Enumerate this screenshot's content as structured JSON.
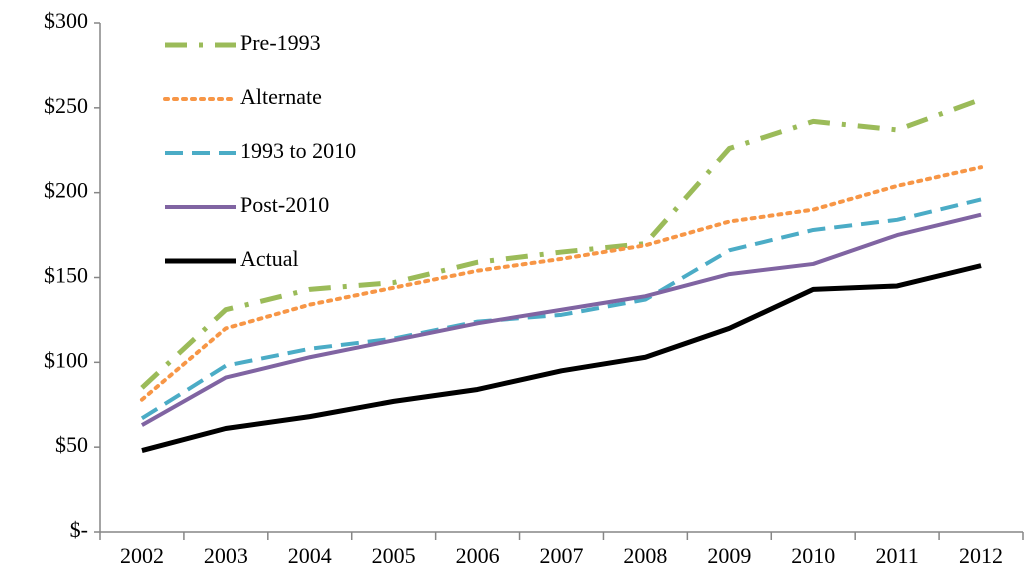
{
  "chart_data": {
    "type": "line",
    "categories": [
      "2002",
      "2003",
      "2004",
      "2005",
      "2006",
      "2007",
      "2008",
      "2009",
      "2010",
      "2011",
      "2012"
    ],
    "series": [
      {
        "name": "Pre-1993",
        "color": "#9bbb59",
        "dash": "dashdot",
        "width": 5,
        "values": [
          85,
          131,
          143,
          147,
          159,
          165,
          170,
          226,
          242,
          237,
          255
        ]
      },
      {
        "name": "Alternate",
        "color": "#f79646",
        "dash": "dotted",
        "width": 4,
        "values": [
          78,
          120,
          134,
          144,
          154,
          161,
          169,
          183,
          190,
          204,
          215
        ]
      },
      {
        "name": "1993 to 2010",
        "color": "#4bacc6",
        "dash": "dashed",
        "width": 4,
        "values": [
          67,
          98,
          108,
          114,
          124,
          128,
          137,
          166,
          178,
          184,
          196
        ]
      },
      {
        "name": "Post-2010",
        "color": "#8064a2",
        "dash": "solid",
        "width": 4,
        "values": [
          63,
          91,
          103,
          113,
          123,
          131,
          139,
          152,
          158,
          175,
          187
        ]
      },
      {
        "name": "Actual",
        "color": "#000000",
        "dash": "solid",
        "width": 5,
        "values": [
          48,
          61,
          68,
          77,
          84,
          95,
          103,
          120,
          143,
          145,
          157
        ]
      }
    ],
    "ylim": [
      0,
      300
    ],
    "yticks": [
      {
        "value": 0,
        "label": "$-"
      },
      {
        "value": 50,
        "label": "$50"
      },
      {
        "value": 100,
        "label": "$100"
      },
      {
        "value": 150,
        "label": "$150"
      },
      {
        "value": 200,
        "label": "$200"
      },
      {
        "value": 250,
        "label": "$250"
      },
      {
        "value": 300,
        "label": "$300"
      }
    ],
    "grid": false,
    "legend": "upper-left"
  }
}
